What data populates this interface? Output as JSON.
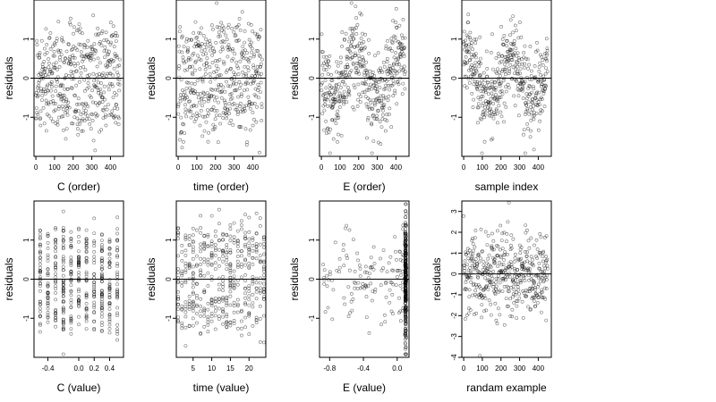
{
  "chart_data": [
    {
      "type": "scatter",
      "title": "",
      "xlabel": "C (order)",
      "ylabel": "residuals",
      "xlim": [
        -10,
        470
      ],
      "ylim": [
        -2.0,
        2.0
      ],
      "x_ticks": [
        0,
        100,
        200,
        300,
        400
      ],
      "y_ticks": [
        -1,
        0,
        1
      ],
      "hline": 0,
      "n_points": 450,
      "pattern": "uniform"
    },
    {
      "type": "scatter",
      "title": "",
      "xlabel": "time (order)",
      "ylabel": "residuals",
      "xlim": [
        -10,
        470
      ],
      "ylim": [
        -2.0,
        2.0
      ],
      "x_ticks": [
        0,
        100,
        200,
        300,
        400
      ],
      "y_ticks": [
        -1,
        0,
        1
      ],
      "hline": 0,
      "n_points": 450,
      "pattern": "uniform"
    },
    {
      "type": "scatter",
      "title": "",
      "xlabel": "E (order)",
      "ylabel": "residuals",
      "xlim": [
        -10,
        470
      ],
      "ylim": [
        -2.0,
        2.0
      ],
      "x_ticks": [
        0,
        100,
        200,
        300,
        400
      ],
      "y_ticks": [
        -1,
        0,
        1
      ],
      "hline": 0,
      "n_points": 450,
      "pattern": "wavy"
    },
    {
      "type": "scatter",
      "title": "",
      "xlabel": "sample index",
      "ylabel": "residuals",
      "xlim": [
        -10,
        470
      ],
      "ylim": [
        -2.0,
        2.0
      ],
      "x_ticks": [
        0,
        100,
        200,
        300,
        400
      ],
      "y_ticks": [
        -1,
        0,
        1
      ],
      "hline": 0,
      "n_points": 450,
      "pattern": "wavy"
    },
    {
      "type": "scatter",
      "title": "",
      "xlabel": "C (value)",
      "ylabel": "residuals",
      "xlim": [
        -0.58,
        0.58
      ],
      "ylim": [
        -2.0,
        2.0
      ],
      "x_ticks": [
        -0.4,
        0.0,
        0.2,
        0.4
      ],
      "x_tick_labels": [
        "-0.4",
        "0.0",
        "0.2",
        "0.4"
      ],
      "y_ticks": [
        -1,
        0,
        1
      ],
      "hline": 0,
      "n_points": 450,
      "pattern": "discrete",
      "x_levels": [
        -0.5,
        -0.4,
        -0.3,
        -0.2,
        -0.1,
        0.0,
        0.1,
        0.2,
        0.3,
        0.4,
        0.5
      ]
    },
    {
      "type": "scatter",
      "title": "",
      "xlabel": "time (value)",
      "ylabel": "residuals",
      "xlim": [
        0.5,
        24.5
      ],
      "ylim": [
        -2.0,
        2.0
      ],
      "x_ticks": [
        5,
        10,
        15,
        20
      ],
      "y_ticks": [
        -1,
        0,
        1
      ],
      "hline": 0,
      "n_points": 450,
      "pattern": "discrete",
      "x_levels": [
        1,
        2,
        3,
        4,
        5,
        6,
        7,
        8,
        9,
        10,
        11,
        12,
        13,
        14,
        15,
        16,
        17,
        18,
        19,
        20,
        21,
        22,
        23,
        24
      ]
    },
    {
      "type": "scatter",
      "title": "",
      "xlabel": "E (value)",
      "ylabel": "residuals",
      "xlim": [
        -0.92,
        0.14
      ],
      "ylim": [
        -2.0,
        2.0
      ],
      "x_ticks": [
        -0.8,
        -0.4,
        0.0
      ],
      "x_tick_labels": [
        "-0.8",
        "-0.4",
        "0.0"
      ],
      "y_ticks": [
        -1,
        0,
        1
      ],
      "hline": 0,
      "n_points": 450,
      "pattern": "clustered",
      "cluster_x": 0.1
    },
    {
      "type": "scatter",
      "title": "",
      "xlabel": "randam example",
      "ylabel": "residuals",
      "xlim": [
        -10,
        470
      ],
      "ylim": [
        -4.0,
        3.5
      ],
      "x_ticks": [
        0,
        100,
        200,
        300,
        400
      ],
      "y_ticks": [
        -4,
        -3,
        -2,
        -1,
        0,
        1,
        2,
        3
      ],
      "hline": 0,
      "n_points": 450,
      "pattern": "normal"
    }
  ]
}
